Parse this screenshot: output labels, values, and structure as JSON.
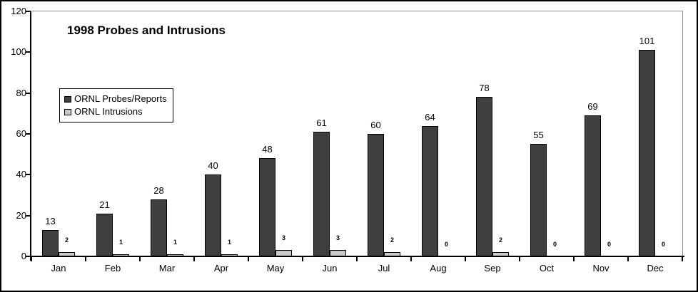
{
  "chart_data": {
    "type": "bar",
    "title": "1998 Probes and Intrusions",
    "categories": [
      "Jan",
      "Feb",
      "Mar",
      "Apr",
      "May",
      "Jun",
      "Jul",
      "Aug",
      "Sep",
      "Oct",
      "Nov",
      "Dec"
    ],
    "series": [
      {
        "name": "ORNL Probes/Reports",
        "color": "#3f3f3f",
        "values": [
          13,
          21,
          28,
          40,
          48,
          61,
          60,
          64,
          78,
          55,
          69,
          101
        ]
      },
      {
        "name": "ORNL Intrusions",
        "color": "#c8c8c8",
        "values": [
          2,
          1,
          1,
          1,
          3,
          3,
          2,
          0,
          2,
          0,
          0,
          0
        ]
      }
    ],
    "xlabel": "",
    "ylabel": "",
    "ylim": [
      0,
      120
    ],
    "yticks": [
      0,
      20,
      40,
      60,
      80,
      100,
      120
    ],
    "grid": "off",
    "legend_position": "upper-left-inside",
    "data_labels": true
  },
  "colors": {
    "background": "#ffffff",
    "frame_border": "#000000",
    "axis": "#000000",
    "plot_border": "#909090",
    "bar_border": "#000000",
    "probes_fill": "#3f3f3f",
    "intrusions_fill": "#c8c8c8"
  }
}
